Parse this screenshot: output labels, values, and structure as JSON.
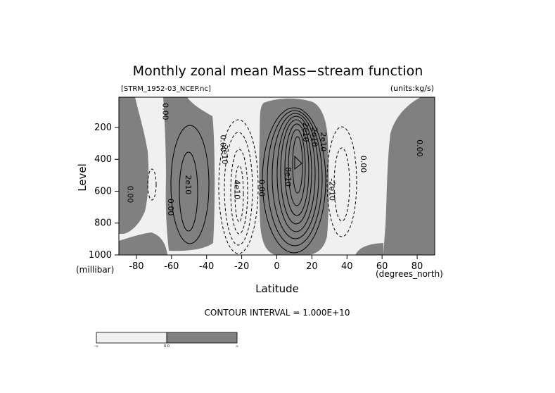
{
  "chart_data": {
    "type": "contour",
    "title": "Monthly zonal mean Mass−stream function",
    "file_label": "[STRM_1952-03_NCEP.nc]",
    "units_label": "(units:kg/s)",
    "xlabel": "Latitude",
    "x_units_label": "(degrees_north)",
    "ylabel": "Level",
    "y_units_label": "(millibar)",
    "xlim": [
      -90,
      90
    ],
    "ylim": [
      1000,
      10
    ],
    "x_ticks": [
      -80,
      -60,
      -40,
      -20,
      0,
      20,
      40,
      60,
      80
    ],
    "y_ticks": [
      200,
      400,
      600,
      800,
      1000
    ],
    "x_tick_labels": [
      "-80",
      "-60",
      "-40",
      "-20",
      "0",
      "20",
      "40",
      "60",
      "80"
    ],
    "y_tick_labels": [
      "200",
      "400",
      "600",
      "800",
      "1000"
    ],
    "contour_interval_label": "CONTOUR INTERVAL = 1.000E+10",
    "shading": {
      "negative_color": "#f0f0f0",
      "positive_color": "#808080"
    },
    "colorbar": {
      "labels": [
        "-∞",
        "0.0",
        "∞"
      ]
    },
    "contour_labels": [
      {
        "text": "0.00",
        "lat": -65,
        "lev": 100
      },
      {
        "text": "2e10",
        "lat": -52,
        "lev": 560
      },
      {
        "text": "0.00",
        "lat": -85,
        "lev": 620
      },
      {
        "text": "0.00",
        "lat": -62,
        "lev": 700
      },
      {
        "text": "0.00",
        "lat": -32,
        "lev": 300
      },
      {
        "text": "2e10",
        "lat": -31,
        "lev": 370
      },
      {
        "text": "4e10",
        "lat": -24,
        "lev": 590
      },
      {
        "text": "0.00",
        "lat": -10,
        "lev": 580
      },
      {
        "text": "8e10",
        "lat": 5,
        "lev": 510
      },
      {
        "text": "2e10",
        "lat": 15,
        "lev": 230
      },
      {
        "text": "2e10",
        "lat": 20,
        "lev": 260
      },
      {
        "text": "2e10",
        "lat": 25,
        "lev": 290
      },
      {
        "text": "0.00",
        "lat": 48,
        "lev": 430
      },
      {
        "text": "-2e10",
        "lat": 30,
        "lev": 590
      },
      {
        "text": "0.00",
        "lat": 80,
        "lev": 330
      }
    ]
  }
}
